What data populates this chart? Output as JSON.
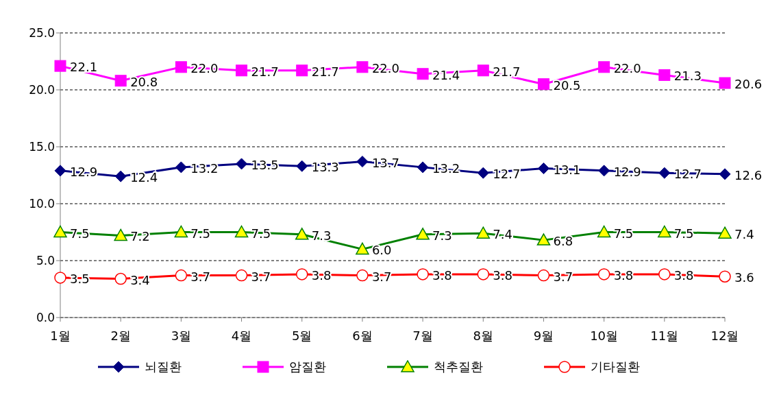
{
  "chart_data": {
    "type": "line",
    "categories": [
      "1월",
      "2월",
      "3월",
      "4월",
      "5월",
      "6월",
      "7월",
      "8월",
      "9월",
      "10월",
      "11월",
      "12월"
    ],
    "series": [
      {
        "name": "뇌질환",
        "color": "#000080",
        "marker": "diamond",
        "values": [
          12.9,
          12.4,
          13.2,
          13.5,
          13.3,
          13.7,
          13.2,
          12.7,
          13.1,
          12.9,
          12.7,
          12.6
        ],
        "value_labels": [
          "12.9",
          "12.4",
          "13.2",
          "13.5",
          "13.3",
          "13.7",
          "13.2",
          "12.7",
          "13.1",
          "12.9",
          "12.7",
          "12.6"
        ]
      },
      {
        "name": "암질환",
        "color": "#ff00ff",
        "marker": "square",
        "values": [
          22.1,
          20.8,
          22.0,
          21.7,
          21.7,
          22.0,
          21.4,
          21.7,
          20.5,
          22.0,
          21.3,
          20.6
        ],
        "value_labels": [
          "22.1",
          "20.8",
          "22.0",
          "21.7",
          "21.7",
          "22.0",
          "21.4",
          "21.7",
          "20.5",
          "22.0",
          "21.3",
          "20.6"
        ]
      },
      {
        "name": "척추질환",
        "color": "#008000",
        "marker": "triangle",
        "values": [
          7.5,
          7.2,
          7.5,
          7.5,
          7.3,
          6.0,
          7.3,
          7.4,
          6.8,
          7.5,
          7.5,
          7.4
        ],
        "value_labels": [
          "7.5",
          "7.2",
          "7.5",
          "7.5",
          "7.3",
          "6.0",
          "7.3",
          "7.4",
          "6.8",
          "7.5",
          "7.5",
          "7.4"
        ]
      },
      {
        "name": "기타질환",
        "color": "#ff0000",
        "marker": "circle",
        "values": [
          3.5,
          3.4,
          3.7,
          3.7,
          3.8,
          3.7,
          3.8,
          3.8,
          3.7,
          3.8,
          3.8,
          3.6
        ],
        "value_labels": [
          "3.5",
          "3.4",
          "3.7",
          "3.7",
          "3.8",
          "3.7",
          "3.8",
          "3.8",
          "3.7",
          "3.8",
          "3.8",
          "3.6"
        ]
      }
    ],
    "ylim": [
      0,
      25
    ],
    "yticks": [
      {
        "value": 0,
        "label": "0.0"
      },
      {
        "value": 5,
        "label": "5.0"
      },
      {
        "value": 10,
        "label": "10.0"
      },
      {
        "value": 15,
        "label": "15.0"
      },
      {
        "value": 20,
        "label": "20.0"
      },
      {
        "value": 25,
        "label": "25.0"
      }
    ],
    "grid": "y",
    "legend": "bottom",
    "line_style": "solid"
  }
}
